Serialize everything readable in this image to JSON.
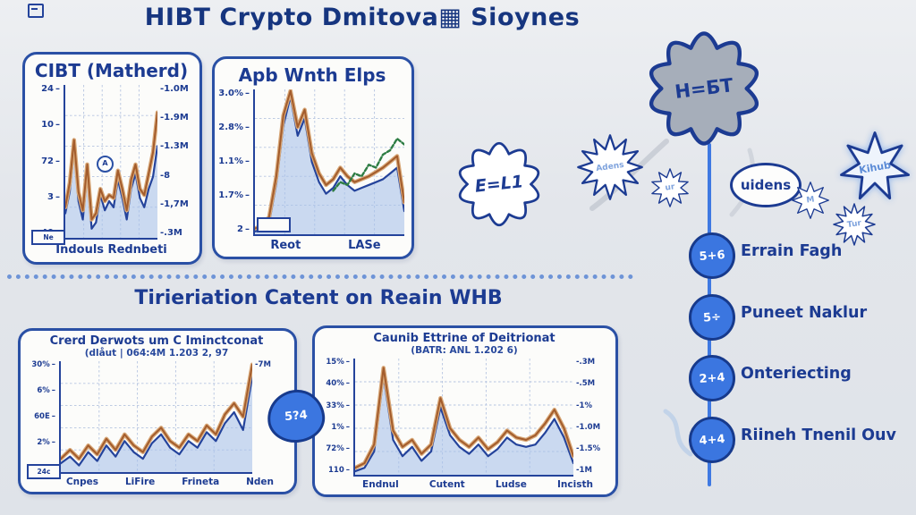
{
  "title": "HIBT Crypto Dmitova▦ Sioynes",
  "section_title": "Tirieriation Catent on Reain WHB",
  "badge_glyph": "5?4",
  "colors": {
    "background": "#e3e6eb",
    "ink_blue": "#1c3b92",
    "panel_border": "#2a50a5",
    "area_fill": "#b9cbea",
    "line_blue": "#24439b",
    "line_orange": "#a35c2c",
    "line_orange_soft": "#d8a878",
    "line_green": "#2e7d44",
    "node_blue": "#3b76e0",
    "cloud_gray": "#a6aeba"
  },
  "panels": [
    {
      "title": "CIBT (Matherd)",
      "box_label": "Ne",
      "annotation": "A"
    },
    {
      "title": "Apb Wnth Elps",
      "box_label": ""
    },
    {
      "title": "Crerd Derwots um C Iminctconat",
      "subtitle": "(dlåut | 064:4M  1.203 2, 97",
      "box_label": "24c"
    },
    {
      "title": "Caunib Ettrine of Deitrionat",
      "subtitle": "(BATR: ANL 1.202 6)",
      "box_label": ""
    }
  ],
  "mindmap": {
    "cloud_label": "H=БТ",
    "thought_bubble_label": "E=L1",
    "bursts": [
      {
        "label": "Adens"
      },
      {
        "label": "ur"
      },
      {
        "label": "uidens"
      },
      {
        "label": "M"
      },
      {
        "label": "Tur"
      },
      {
        "label": "Kihub"
      }
    ],
    "timeline": [
      {
        "glyph": "5+6",
        "label": "Errain Fagh"
      },
      {
        "glyph": "5÷",
        "label": "Puneet Naklur"
      },
      {
        "glyph": "2+4",
        "label": "Onteriecting"
      },
      {
        "glyph": "4+4",
        "label": "Riineh Tnenil Ouv"
      }
    ]
  },
  "chart_data": [
    {
      "type": "area",
      "title": "CIBT (Matherd)",
      "left_ticks": [
        "24",
        "10",
        "72",
        "3",
        "40"
      ],
      "right_ticks": [
        "-1.0M",
        "-1.9M",
        "-1.3M",
        "-8",
        "-1,7M",
        "-.3M"
      ],
      "x_ticks": [],
      "x_caption": "Indouls Rednbeti",
      "grid": true,
      "series": [
        {
          "name": "blue-area",
          "color": "#24439b",
          "width": 2.2,
          "fill": "rgba(169,194,233,0.6)",
          "values": [
            16,
            30,
            58,
            24,
            12,
            42,
            6,
            10,
            28,
            18,
            24,
            20,
            38,
            26,
            12,
            32,
            42,
            26,
            20,
            32,
            40,
            60
          ]
        },
        {
          "name": "orange-soft",
          "color": "#d8a878",
          "width": 4.5,
          "values": [
            20,
            36,
            64,
            30,
            18,
            48,
            12,
            16,
            32,
            24,
            28,
            26,
            44,
            32,
            18,
            38,
            48,
            32,
            28,
            42,
            56,
            82
          ]
        },
        {
          "name": "orange-line",
          "color": "#a35c2c",
          "width": 2,
          "values": [
            20,
            36,
            64,
            30,
            18,
            48,
            12,
            16,
            32,
            24,
            28,
            26,
            44,
            32,
            18,
            38,
            48,
            32,
            28,
            42,
            56,
            82
          ]
        }
      ]
    },
    {
      "type": "area",
      "title": "Apb Wnth Elps",
      "left_ticks": [
        "3.0%",
        "2.8%",
        "1.1%",
        "1.7%",
        "2"
      ],
      "right_ticks": [],
      "x_ticks": [
        "Reot",
        "LASe"
      ],
      "x_caption": "",
      "grid": true,
      "series": [
        {
          "name": "blue-area",
          "color": "#24439b",
          "width": 2.2,
          "fill": "rgba(169,194,233,0.6)",
          "values": [
            2,
            3,
            8,
            35,
            75,
            95,
            68,
            80,
            50,
            36,
            28,
            32,
            40,
            34,
            30,
            32,
            34,
            36,
            38,
            42,
            46,
            16
          ]
        },
        {
          "name": "orange-soft",
          "color": "#d8a878",
          "width": 4.5,
          "values": [
            4,
            6,
            12,
            40,
            82,
            99,
            74,
            86,
            56,
            42,
            34,
            38,
            46,
            40,
            36,
            38,
            40,
            43,
            46,
            50,
            54,
            22
          ]
        },
        {
          "name": "orange-line",
          "color": "#a35c2c",
          "width": 2,
          "values": [
            4,
            6,
            12,
            40,
            82,
            99,
            74,
            86,
            56,
            42,
            34,
            38,
            46,
            40,
            36,
            38,
            40,
            43,
            46,
            50,
            54,
            22
          ]
        },
        {
          "name": "green-candles",
          "color": "#2e7d44",
          "width": 2.4,
          "dash": "4 2.5",
          "values": [
            null,
            null,
            null,
            null,
            null,
            null,
            null,
            null,
            null,
            null,
            null,
            30,
            36,
            34,
            42,
            40,
            48,
            46,
            55,
            58,
            66,
            62
          ]
        }
      ]
    },
    {
      "type": "area",
      "title": "Crerd Derwots um C Iminctconat",
      "left_ticks": [
        "30%",
        "6%",
        "60E",
        "2%",
        "$1L"
      ],
      "right_ticks": [
        "-7M"
      ],
      "x_ticks": [
        "Cnpes",
        "LiFire",
        "Frineta",
        "Nden"
      ],
      "x_caption": "",
      "grid": true,
      "series": [
        {
          "name": "blue-area",
          "color": "#24439b",
          "width": 2.2,
          "fill": "rgba(169,194,233,0.6)",
          "values": [
            8,
            14,
            6,
            18,
            10,
            24,
            14,
            28,
            18,
            12,
            26,
            34,
            22,
            16,
            28,
            22,
            36,
            28,
            44,
            54,
            38,
            86
          ]
        },
        {
          "name": "orange-soft",
          "color": "#d8a878",
          "width": 4.5,
          "values": [
            12,
            20,
            12,
            24,
            16,
            30,
            20,
            34,
            24,
            18,
            32,
            40,
            28,
            22,
            34,
            28,
            42,
            34,
            52,
            62,
            50,
            97
          ]
        },
        {
          "name": "orange-line",
          "color": "#a35c2c",
          "width": 2,
          "values": [
            12,
            20,
            12,
            24,
            16,
            30,
            20,
            34,
            24,
            18,
            32,
            40,
            28,
            22,
            34,
            28,
            42,
            34,
            52,
            62,
            50,
            97
          ]
        }
      ]
    },
    {
      "type": "area",
      "title": "Caunib Ettrine of Deitrionat",
      "left_ticks": [
        "15%",
        "40%",
        "33%",
        "1%",
        "72%",
        "110"
      ],
      "right_ticks": [
        "-.3M",
        "-.5M",
        "-1%",
        "-1.0M",
        "-1.5%",
        "-1M"
      ],
      "x_ticks": [
        "Endnul",
        "Cutent",
        "Ludse",
        "Incisth"
      ],
      "x_caption": "",
      "grid": true,
      "series": [
        {
          "name": "blue-area",
          "color": "#24439b",
          "width": 2.2,
          "fill": "rgba(169,194,233,0.6)",
          "values": [
            3,
            6,
            20,
            85,
            30,
            16,
            24,
            12,
            20,
            58,
            34,
            24,
            18,
            26,
            16,
            22,
            32,
            26,
            24,
            26,
            36,
            48,
            32,
            10
          ]
        },
        {
          "name": "orange-soft",
          "color": "#d8a878",
          "width": 4.5,
          "values": [
            6,
            10,
            26,
            92,
            38,
            24,
            30,
            18,
            26,
            66,
            40,
            30,
            24,
            32,
            22,
            28,
            38,
            32,
            30,
            34,
            44,
            56,
            40,
            16
          ]
        },
        {
          "name": "orange-line",
          "color": "#a35c2c",
          "width": 2,
          "values": [
            6,
            10,
            26,
            92,
            38,
            24,
            30,
            18,
            26,
            66,
            40,
            30,
            24,
            32,
            22,
            28,
            38,
            32,
            30,
            34,
            44,
            56,
            40,
            16
          ]
        }
      ]
    }
  ]
}
